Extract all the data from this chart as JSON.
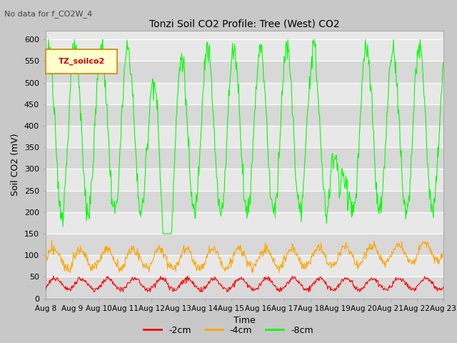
{
  "title": "Tonzi Soil CO2 Profile: Tree (West) CO2",
  "no_data_text": "No data for f_CO2W_4",
  "ylabel": "Soil CO2 (mV)",
  "xlabel": "Time",
  "legend_label_box": "TZ_soilco2",
  "ylim": [
    0,
    620
  ],
  "yticks": [
    0,
    50,
    100,
    150,
    200,
    250,
    300,
    350,
    400,
    450,
    500,
    550,
    600
  ],
  "tick_labels": [
    "Aug 8",
    "Aug 9",
    "Aug 10",
    "Aug 11",
    "Aug 12",
    "Aug 13",
    "Aug 14",
    "Aug 15",
    "Aug 16",
    "Aug 17",
    "Aug 18",
    "Aug 19",
    "Aug 20",
    "Aug 21",
    "Aug 22",
    "Aug 23"
  ],
  "colors": {
    "red": "#ff0000",
    "orange": "#ffa500",
    "green": "#00ff00",
    "fig_bg": "#c8c8c8",
    "plot_bg_light": "#e8e8e8",
    "plot_bg_dark": "#d8d8d8",
    "grid_color": "#ffffff"
  },
  "legend_entries": [
    "-2cm",
    "-4cm",
    "-8cm"
  ],
  "n_days": 15,
  "n_per_day": 48
}
